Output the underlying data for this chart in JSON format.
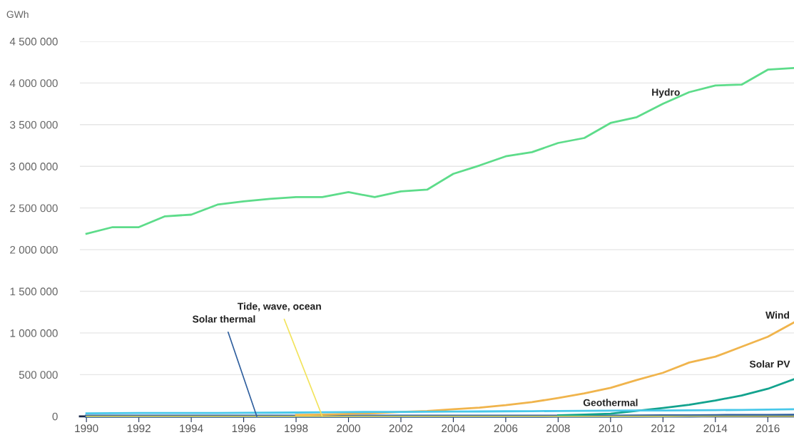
{
  "chart_data": {
    "type": "line",
    "ylabel": "GWh",
    "x": [
      1990,
      1991,
      1992,
      1993,
      1994,
      1995,
      1996,
      1997,
      1998,
      1999,
      2000,
      2001,
      2002,
      2003,
      2004,
      2005,
      2006,
      2007,
      2008,
      2009,
      2010,
      2011,
      2012,
      2013,
      2014,
      2015,
      2016,
      2017
    ],
    "series": [
      {
        "name": "Hydro",
        "color": "#5ddc8a",
        "values": [
          2190000,
          2270000,
          2270000,
          2400000,
          2420000,
          2540000,
          2580000,
          2610000,
          2630000,
          2630000,
          2690000,
          2630000,
          2700000,
          2720000,
          2910000,
          3010000,
          3120000,
          3170000,
          3280000,
          3340000,
          3520000,
          3590000,
          3750000,
          3890000,
          3970000,
          3980000,
          4160000,
          4180000
        ]
      },
      {
        "name": "Wind",
        "color": "#f0b44c",
        "values": [
          null,
          null,
          null,
          null,
          null,
          null,
          null,
          null,
          16000,
          21000,
          30000,
          38000,
          52000,
          63000,
          85000,
          104000,
          133000,
          170000,
          220000,
          276000,
          342000,
          436000,
          522000,
          645000,
          716000,
          834000,
          955000,
          1127000
        ]
      },
      {
        "name": "Solar PV",
        "color": "#13a38e",
        "values": [
          null,
          null,
          null,
          null,
          null,
          null,
          null,
          null,
          null,
          null,
          null,
          null,
          null,
          null,
          null,
          null,
          null,
          null,
          12000,
          21000,
          32000,
          65000,
          100000,
          139000,
          190000,
          250000,
          330000,
          445000
        ]
      },
      {
        "name": "Geothermal",
        "color": "#48c8ea",
        "values": [
          36000,
          38000,
          39000,
          40000,
          40000,
          40000,
          42000,
          43000,
          45000,
          48000,
          51000,
          52000,
          53000,
          54000,
          56000,
          58000,
          60000,
          61000,
          64000,
          66000,
          68000,
          69000,
          70000,
          71000,
          74000,
          77000,
          81000,
          85000
        ]
      },
      {
        "name": "Solar thermal",
        "color": "#2f5f9e",
        "values": [
          1000,
          1000,
          1000,
          1000,
          1000,
          1000,
          1000,
          1000,
          1000,
          1000,
          1000,
          1000,
          1000,
          1000,
          1000,
          1000,
          1000,
          1000,
          2000,
          2000,
          2000,
          3000,
          5000,
          6000,
          9000,
          10000,
          11000,
          12000
        ]
      },
      {
        "name": "Tide, wave, ocean",
        "color": "#f2e35a",
        "values": [
          600,
          600,
          600,
          600,
          600,
          600,
          600,
          600,
          600,
          600,
          600,
          600,
          600,
          600,
          600,
          600,
          600,
          600,
          600,
          600,
          600,
          600,
          600,
          1000,
          1000,
          1000,
          1000,
          1000
        ]
      }
    ],
    "xlim": [
      1989.75,
      2017
    ],
    "xticks": [
      1990,
      1992,
      1994,
      1996,
      1998,
      2000,
      2002,
      2004,
      2006,
      2008,
      2010,
      2012,
      2014,
      2016
    ],
    "ylim": [
      0,
      4500000
    ],
    "yticks": [
      {
        "value": 0,
        "label": "0"
      },
      {
        "value": 500000,
        "label": "500 000"
      },
      {
        "value": 1000000,
        "label": "1 000 000"
      },
      {
        "value": 1500000,
        "label": "1 500 000"
      },
      {
        "value": 2000000,
        "label": "2 000 000"
      },
      {
        "value": 2500000,
        "label": "2 500 000"
      },
      {
        "value": 3000000,
        "label": "3 000 000"
      },
      {
        "value": 3500000,
        "label": "3 500 000"
      },
      {
        "value": 4000000,
        "label": "4 000 000"
      },
      {
        "value": 4500000,
        "label": "4 500 000"
      }
    ],
    "grid": "y",
    "legend": false,
    "marker": "none",
    "line_style": "solid"
  }
}
